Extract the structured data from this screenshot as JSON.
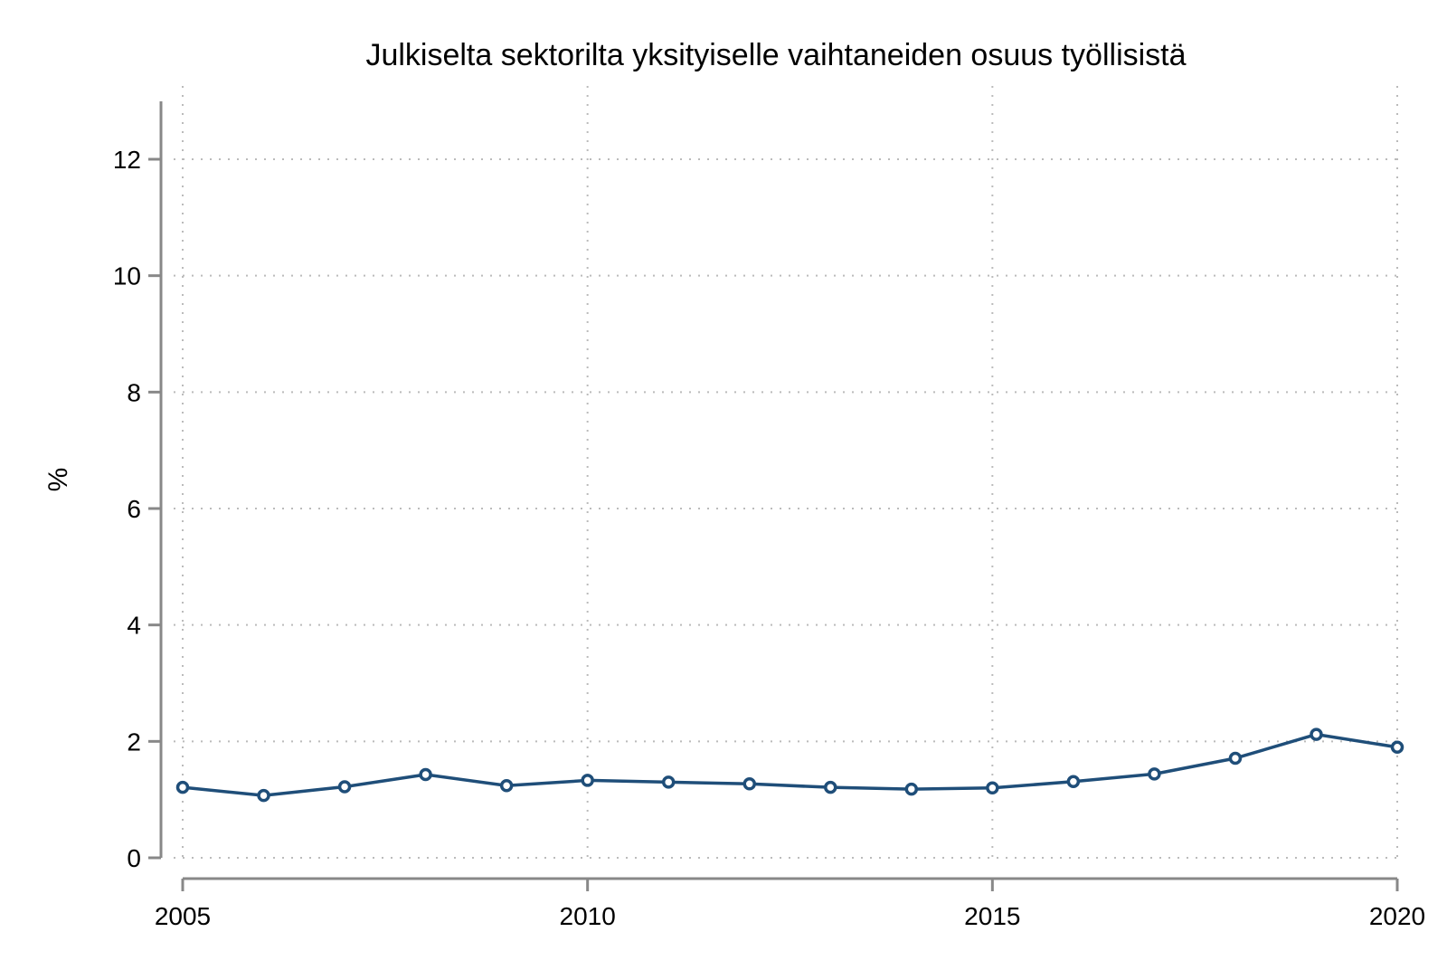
{
  "chart_data": {
    "type": "line",
    "title": "Julkiselta sektorilta yksityiselle vaihtaneiden osuus työllisistä",
    "xlabel": "",
    "ylabel": "%",
    "xlim": [
      2005,
      2020
    ],
    "ylim": [
      0,
      13
    ],
    "x_ticks": [
      "2005",
      "2010",
      "2015",
      "2020"
    ],
    "y_ticks": [
      "0",
      "2",
      "4",
      "6",
      "8",
      "10",
      "12"
    ],
    "grid": true,
    "legend": "none",
    "x": [
      2005,
      2006,
      2007,
      2008,
      2009,
      2010,
      2011,
      2012,
      2013,
      2014,
      2015,
      2016,
      2017,
      2018,
      2019,
      2020
    ],
    "series": [
      {
        "values": [
          1.21,
          1.07,
          1.22,
          1.43,
          1.24,
          1.33,
          1.3,
          1.27,
          1.21,
          1.18,
          1.2,
          1.31,
          1.44,
          1.71,
          2.12,
          1.9
        ]
      }
    ],
    "colors": {
      "line": "#1f4e79",
      "marker_fill": "#ffffff",
      "axis": "#888888",
      "grid": "#bbbbbb"
    }
  }
}
